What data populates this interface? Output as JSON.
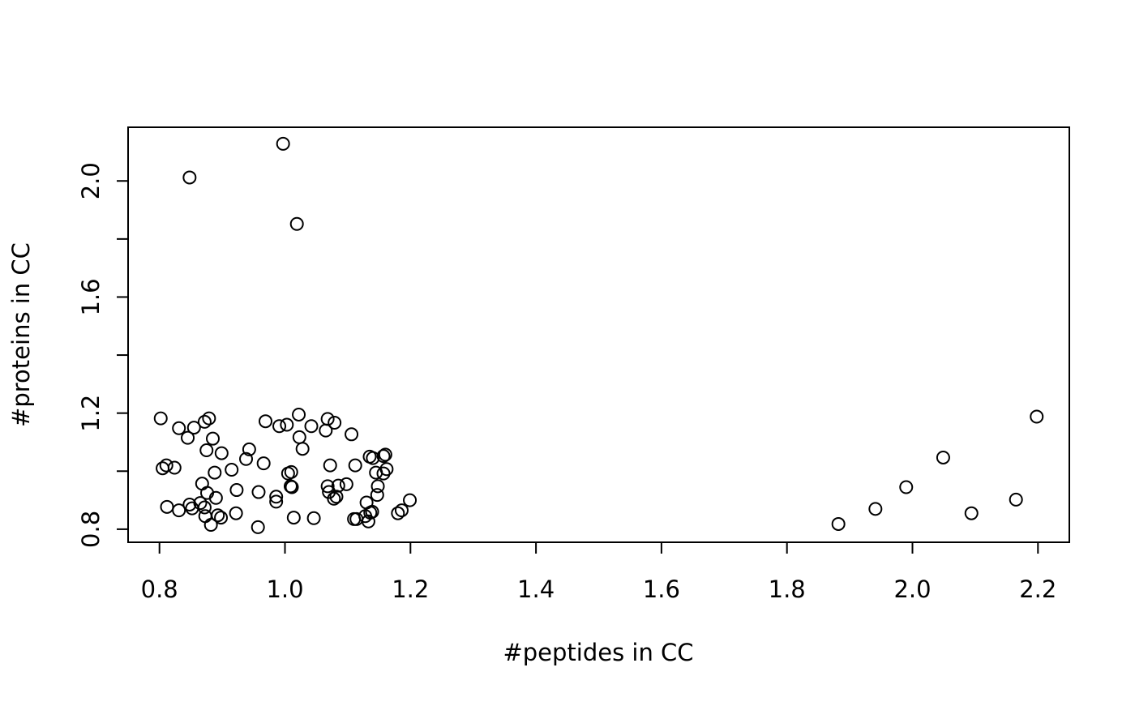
{
  "chart_data": {
    "type": "scatter",
    "title": "",
    "xlabel": "#peptides in CC",
    "ylabel": "#proteins in CC",
    "xlim": [
      0.75,
      2.25
    ],
    "ylim": [
      0.755,
      2.185
    ],
    "x_ticks": [
      0.8,
      1.0,
      1.2,
      1.4,
      1.6,
      1.8,
      2.0,
      2.2
    ],
    "x_tick_labels": [
      "0.8",
      "1.0",
      "1.2",
      "1.4",
      "1.6",
      "1.8",
      "2.0",
      "2.2"
    ],
    "y_ticks": [
      0.8,
      1.0,
      1.2,
      1.4,
      1.6,
      1.8,
      2.0
    ],
    "y_tick_labels": [
      "0.8",
      "",
      "1.2",
      "",
      "1.6",
      "",
      "2.0"
    ],
    "grid": false,
    "marker": "open-circle",
    "color": "#000000",
    "points": [
      {
        "x": 0.848,
        "y": 2.012
      },
      {
        "x": 0.997,
        "y": 2.128
      },
      {
        "x": 1.019,
        "y": 1.852
      },
      {
        "x": 0.802,
        "y": 1.182
      },
      {
        "x": 0.831,
        "y": 1.148
      },
      {
        "x": 0.845,
        "y": 1.115
      },
      {
        "x": 0.855,
        "y": 1.15
      },
      {
        "x": 0.872,
        "y": 1.17
      },
      {
        "x": 0.879,
        "y": 1.182
      },
      {
        "x": 0.885,
        "y": 1.112
      },
      {
        "x": 0.875,
        "y": 1.072
      },
      {
        "x": 0.899,
        "y": 1.062
      },
      {
        "x": 0.805,
        "y": 1.01
      },
      {
        "x": 0.811,
        "y": 1.02
      },
      {
        "x": 0.824,
        "y": 1.012
      },
      {
        "x": 0.888,
        "y": 0.995
      },
      {
        "x": 0.915,
        "y": 1.005
      },
      {
        "x": 0.868,
        "y": 0.957
      },
      {
        "x": 0.876,
        "y": 0.925
      },
      {
        "x": 0.89,
        "y": 0.908
      },
      {
        "x": 0.812,
        "y": 0.877
      },
      {
        "x": 0.831,
        "y": 0.865
      },
      {
        "x": 0.848,
        "y": 0.885
      },
      {
        "x": 0.852,
        "y": 0.872
      },
      {
        "x": 0.865,
        "y": 0.89
      },
      {
        "x": 0.872,
        "y": 0.875
      },
      {
        "x": 0.873,
        "y": 0.845
      },
      {
        "x": 0.893,
        "y": 0.848
      },
      {
        "x": 0.898,
        "y": 0.84
      },
      {
        "x": 0.882,
        "y": 0.815
      },
      {
        "x": 0.922,
        "y": 0.855
      },
      {
        "x": 0.923,
        "y": 0.935
      },
      {
        "x": 0.938,
        "y": 1.042
      },
      {
        "x": 0.943,
        "y": 1.075
      },
      {
        "x": 0.958,
        "y": 0.928
      },
      {
        "x": 0.957,
        "y": 0.807
      },
      {
        "x": 0.966,
        "y": 1.027
      },
      {
        "x": 0.969,
        "y": 1.172
      },
      {
        "x": 0.986,
        "y": 0.912
      },
      {
        "x": 0.986,
        "y": 0.895
      },
      {
        "x": 0.991,
        "y": 1.155
      },
      {
        "x": 1.003,
        "y": 1.16
      },
      {
        "x": 1.005,
        "y": 0.992
      },
      {
        "x": 1.01,
        "y": 0.997
      },
      {
        "x": 1.009,
        "y": 0.948
      },
      {
        "x": 1.011,
        "y": 0.945
      },
      {
        "x": 1.014,
        "y": 0.84
      },
      {
        "x": 1.022,
        "y": 1.195
      },
      {
        "x": 1.023,
        "y": 1.117
      },
      {
        "x": 1.028,
        "y": 1.077
      },
      {
        "x": 1.042,
        "y": 1.155
      },
      {
        "x": 1.046,
        "y": 0.838
      },
      {
        "x": 1.065,
        "y": 1.14
      },
      {
        "x": 1.068,
        "y": 1.18
      },
      {
        "x": 1.068,
        "y": 0.948
      },
      {
        "x": 1.07,
        "y": 0.928
      },
      {
        "x": 1.072,
        "y": 1.02
      },
      {
        "x": 1.079,
        "y": 1.167
      },
      {
        "x": 1.078,
        "y": 0.905
      },
      {
        "x": 1.082,
        "y": 0.912
      },
      {
        "x": 1.085,
        "y": 0.95
      },
      {
        "x": 1.098,
        "y": 0.955
      },
      {
        "x": 1.106,
        "y": 1.127
      },
      {
        "x": 1.112,
        "y": 1.02
      },
      {
        "x": 1.11,
        "y": 0.835
      },
      {
        "x": 1.114,
        "y": 0.835
      },
      {
        "x": 1.128,
        "y": 0.845
      },
      {
        "x": 1.13,
        "y": 0.892
      },
      {
        "x": 1.133,
        "y": 0.827
      },
      {
        "x": 1.135,
        "y": 1.05
      },
      {
        "x": 1.136,
        "y": 0.857
      },
      {
        "x": 1.139,
        "y": 0.86
      },
      {
        "x": 1.14,
        "y": 1.045
      },
      {
        "x": 1.145,
        "y": 0.995
      },
      {
        "x": 1.147,
        "y": 0.918
      },
      {
        "x": 1.148,
        "y": 0.948
      },
      {
        "x": 1.157,
        "y": 1.052
      },
      {
        "x": 1.157,
        "y": 0.992
      },
      {
        "x": 1.16,
        "y": 1.057
      },
      {
        "x": 1.162,
        "y": 1.007
      },
      {
        "x": 1.18,
        "y": 0.855
      },
      {
        "x": 1.186,
        "y": 0.865
      },
      {
        "x": 1.199,
        "y": 0.9
      },
      {
        "x": 1.882,
        "y": 0.818
      },
      {
        "x": 1.941,
        "y": 0.87
      },
      {
        "x": 1.99,
        "y": 0.945
      },
      {
        "x": 2.049,
        "y": 1.047
      },
      {
        "x": 2.094,
        "y": 0.855
      },
      {
        "x": 2.165,
        "y": 0.902
      },
      {
        "x": 2.198,
        "y": 1.188
      }
    ]
  }
}
